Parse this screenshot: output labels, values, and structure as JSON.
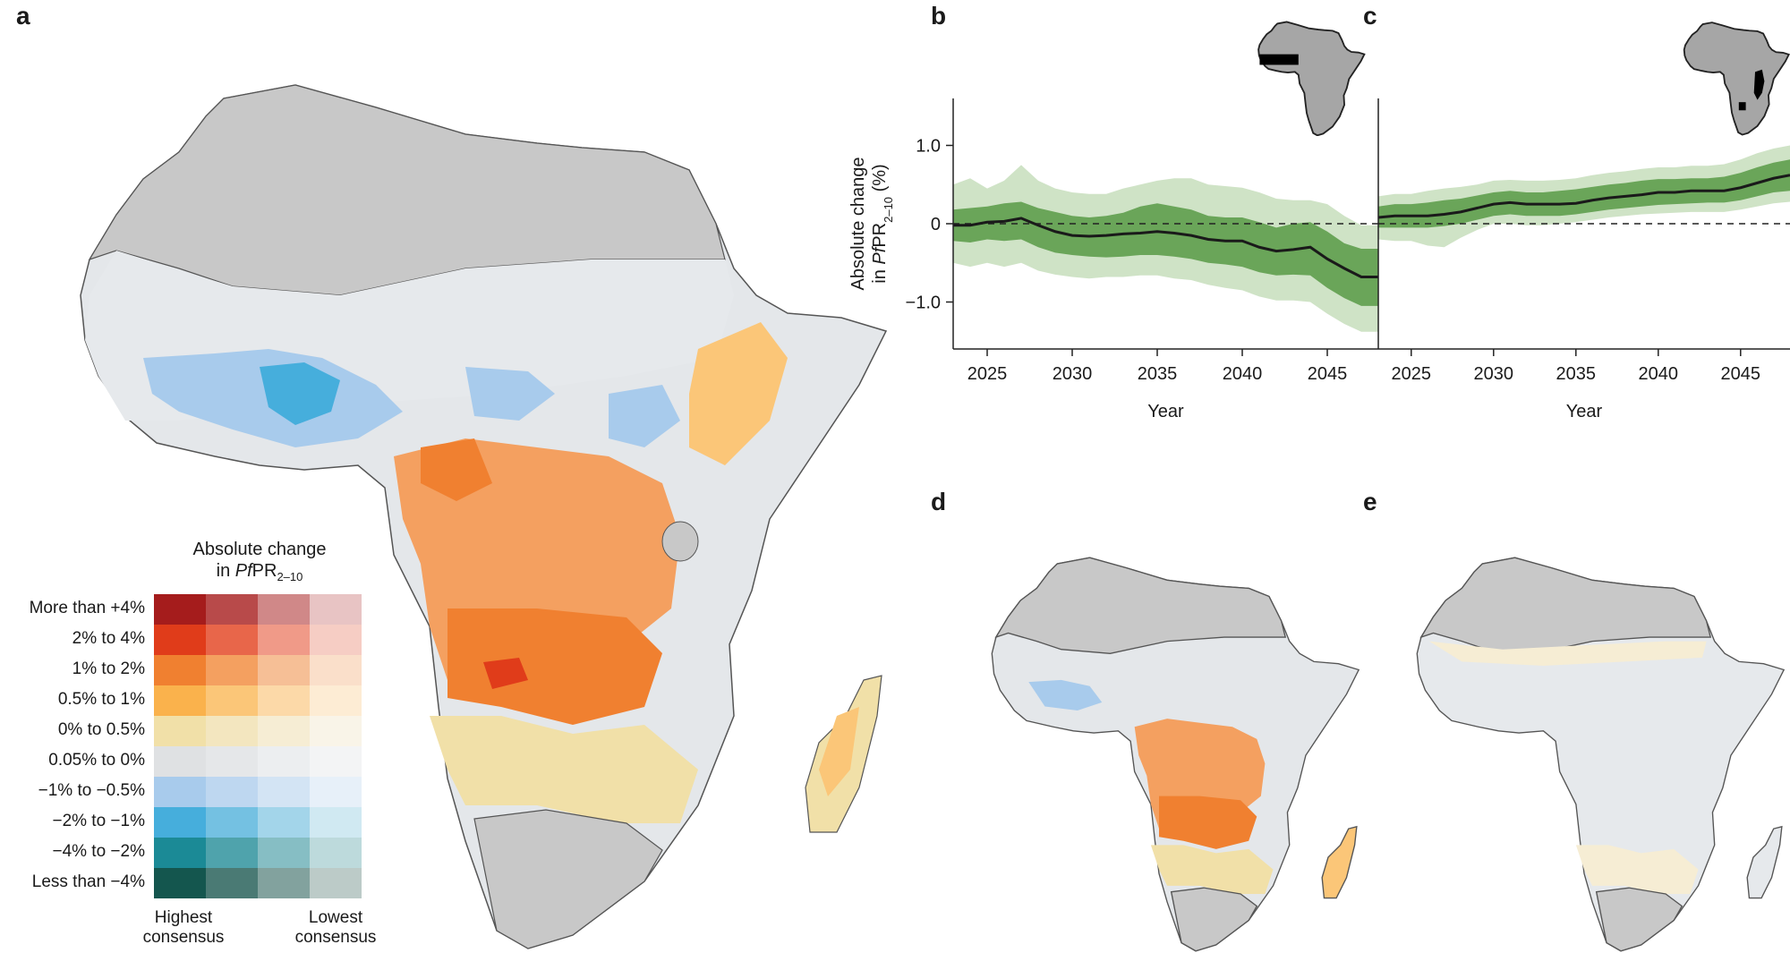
{
  "panels": {
    "a": "a",
    "b": "b",
    "c": "c",
    "d": "d",
    "e": "e"
  },
  "legend": {
    "title_line1": "Absolute change",
    "title_line2_prefix": "in ",
    "title_italic": "Pf",
    "title_rest": "PR",
    "title_sub": "2–10",
    "rows": [
      {
        "label": "More than +4%",
        "colors": [
          "#a51c1c",
          "#b84a4a",
          "#d08888",
          "#e8c4c4"
        ]
      },
      {
        "label": "2% to 4%",
        "colors": [
          "#e03c1a",
          "#e8664a",
          "#f09a88",
          "#f6cdc4"
        ]
      },
      {
        "label": "1% to 2%",
        "colors": [
          "#f08030",
          "#f4a060",
          "#f6bf96",
          "#fadfca"
        ]
      },
      {
        "label": "0.5% to 1%",
        "colors": [
          "#fab24c",
          "#fbc678",
          "#fcd9a8",
          "#fdecd4"
        ]
      },
      {
        "label": "0% to 0.5%",
        "colors": [
          "#f1e0a8",
          "#f3e6bf",
          "#f6edd4",
          "#f9f4e8"
        ]
      },
      {
        "label": "0.05% to 0%",
        "colors": [
          "#dfe1e3",
          "#e5e7e9",
          "#eceef0",
          "#f3f4f5"
        ]
      },
      {
        "label": "−1% to −0.5%",
        "colors": [
          "#a8cbec",
          "#bed7f0",
          "#d3e4f4",
          "#e7f0f9"
        ]
      },
      {
        "label": "−2% to −1%",
        "colors": [
          "#46aedc",
          "#74c1e2",
          "#a3d5ea",
          "#d0e9f2"
        ]
      },
      {
        "label": "−4% to −2%",
        "colors": [
          "#1b8a96",
          "#4fa3ac",
          "#86bec4",
          "#bddadc"
        ]
      },
      {
        "label": "Less than −4%",
        "colors": [
          "#14564e",
          "#4a7a74",
          "#82a29e",
          "#bccbc8"
        ]
      }
    ],
    "x_left_line1": "Highest",
    "x_left_line2": "consensus",
    "x_right_line1": "Lowest",
    "x_right_line2": "consensus"
  },
  "map_colors": {
    "nodata": "#c8c8c8",
    "neutral": "#e4e7ea",
    "light_yellow": "#f1e0a8",
    "yellow": "#fbc678",
    "orange": "#f4a060",
    "deep_orange": "#f08030",
    "red": "#e03c1a",
    "light_blue": "#a8cbec",
    "blue": "#46aedc",
    "border": "#555555"
  },
  "chart_data": [
    {
      "type": "line",
      "panel": "b",
      "ylabel_line1": "Absolute change",
      "ylabel_line2_prefix": "in ",
      "ylabel_italic": "Pf",
      "ylabel_rest": "PR",
      "ylabel_sub": "2–10",
      "ylabel_suffix": " (%)",
      "xlabel": "Year",
      "xlim": [
        2023,
        2048
      ],
      "ylim": [
        -1.6,
        1.6
      ],
      "xticks": [
        "2025",
        "2030",
        "2035",
        "2040",
        "2045"
      ],
      "xtick_values": [
        2025,
        2030,
        2035,
        2040,
        2045
      ],
      "yticks": [
        "1.0",
        "0",
        "−1.0"
      ],
      "ytick_values": [
        1.0,
        0,
        -1.0
      ],
      "reference_line": 0,
      "x": [
        2023,
        2024,
        2025,
        2026,
        2027,
        2028,
        2029,
        2030,
        2031,
        2032,
        2033,
        2034,
        2035,
        2036,
        2037,
        2038,
        2039,
        2040,
        2041,
        2042,
        2043,
        2044,
        2045,
        2046,
        2047,
        2048
      ],
      "median": [
        -0.02,
        -0.02,
        0.02,
        0.03,
        0.07,
        -0.02,
        -0.1,
        -0.15,
        -0.16,
        -0.15,
        -0.13,
        -0.12,
        -0.1,
        -0.12,
        -0.15,
        -0.2,
        -0.22,
        -0.22,
        -0.3,
        -0.35,
        -0.33,
        -0.3,
        -0.45,
        -0.57,
        -0.68,
        -0.68
      ],
      "inner_low": [
        -0.22,
        -0.24,
        -0.2,
        -0.22,
        -0.2,
        -0.3,
        -0.37,
        -0.4,
        -0.42,
        -0.43,
        -0.42,
        -0.4,
        -0.4,
        -0.42,
        -0.45,
        -0.5,
        -0.52,
        -0.55,
        -0.62,
        -0.66,
        -0.65,
        -0.66,
        -0.82,
        -0.95,
        -1.05,
        -1.05
      ],
      "inner_high": [
        0.18,
        0.2,
        0.22,
        0.26,
        0.28,
        0.2,
        0.15,
        0.1,
        0.08,
        0.1,
        0.14,
        0.22,
        0.26,
        0.22,
        0.18,
        0.1,
        0.08,
        0.08,
        0.02,
        -0.05,
        0.0,
        0.02,
        -0.1,
        -0.25,
        -0.32,
        -0.32
      ],
      "outer_low": [
        -0.5,
        -0.55,
        -0.5,
        -0.55,
        -0.5,
        -0.6,
        -0.65,
        -0.68,
        -0.7,
        -0.68,
        -0.68,
        -0.66,
        -0.66,
        -0.7,
        -0.72,
        -0.78,
        -0.82,
        -0.85,
        -0.93,
        -0.98,
        -0.98,
        -1.0,
        -1.15,
        -1.28,
        -1.38,
        -1.38
      ],
      "outer_high": [
        0.5,
        0.58,
        0.45,
        0.55,
        0.75,
        0.55,
        0.45,
        0.4,
        0.38,
        0.38,
        0.45,
        0.5,
        0.55,
        0.58,
        0.58,
        0.5,
        0.48,
        0.46,
        0.4,
        0.32,
        0.3,
        0.3,
        0.25,
        0.1,
        -0.02,
        -0.02
      ],
      "colors": {
        "line": "#1a1a1a",
        "inner": "#6aa559",
        "outer": "#cfe3c6"
      }
    },
    {
      "type": "line",
      "panel": "c",
      "xlabel": "Year",
      "xlim": [
        2023,
        2048
      ],
      "ylim": [
        -1.6,
        1.6
      ],
      "xticks": [
        "2025",
        "2030",
        "2035",
        "2040",
        "2045"
      ],
      "xtick_values": [
        2025,
        2030,
        2035,
        2040,
        2045
      ],
      "reference_line": 0,
      "x": [
        2023,
        2024,
        2025,
        2026,
        2027,
        2028,
        2029,
        2030,
        2031,
        2032,
        2033,
        2034,
        2035,
        2036,
        2037,
        2038,
        2039,
        2040,
        2041,
        2042,
        2043,
        2044,
        2045,
        2046,
        2047,
        2048
      ],
      "median": [
        0.08,
        0.1,
        0.1,
        0.1,
        0.12,
        0.15,
        0.2,
        0.25,
        0.27,
        0.25,
        0.25,
        0.25,
        0.26,
        0.3,
        0.33,
        0.35,
        0.37,
        0.4,
        0.4,
        0.42,
        0.42,
        0.42,
        0.46,
        0.52,
        0.58,
        0.62
      ],
      "inner_low": [
        -0.05,
        -0.05,
        -0.05,
        -0.05,
        -0.03,
        0.0,
        0.05,
        0.1,
        0.12,
        0.1,
        0.1,
        0.1,
        0.12,
        0.15,
        0.18,
        0.2,
        0.22,
        0.24,
        0.25,
        0.26,
        0.27,
        0.27,
        0.3,
        0.35,
        0.4,
        0.42
      ],
      "inner_high": [
        0.22,
        0.25,
        0.25,
        0.27,
        0.3,
        0.32,
        0.36,
        0.4,
        0.42,
        0.4,
        0.4,
        0.42,
        0.44,
        0.47,
        0.5,
        0.52,
        0.55,
        0.57,
        0.57,
        0.58,
        0.58,
        0.6,
        0.65,
        0.72,
        0.78,
        0.82
      ],
      "outer_low": [
        -0.2,
        -0.22,
        -0.22,
        -0.28,
        -0.3,
        -0.18,
        -0.08,
        0.0,
        0.0,
        -0.02,
        -0.02,
        0.0,
        0.02,
        0.05,
        0.08,
        0.1,
        0.12,
        0.13,
        0.14,
        0.15,
        0.15,
        0.15,
        0.18,
        0.22,
        0.26,
        0.28
      ],
      "outer_high": [
        0.35,
        0.38,
        0.38,
        0.42,
        0.45,
        0.47,
        0.5,
        0.55,
        0.56,
        0.55,
        0.55,
        0.56,
        0.58,
        0.62,
        0.65,
        0.67,
        0.7,
        0.72,
        0.72,
        0.74,
        0.74,
        0.76,
        0.82,
        0.9,
        0.96,
        1.0
      ],
      "colors": {
        "line": "#1a1a1a",
        "inner": "#6aa559",
        "outer": "#cfe3c6"
      }
    }
  ]
}
